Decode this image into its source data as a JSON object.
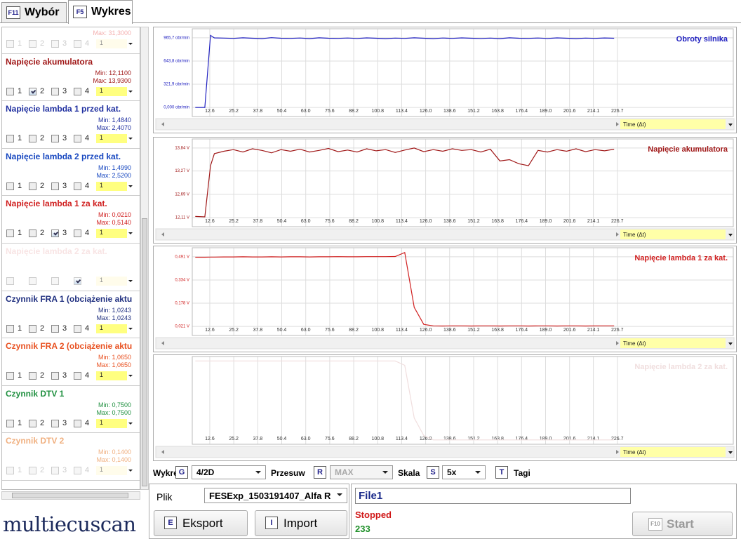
{
  "tabs": [
    {
      "key": "F11",
      "label": "Wybór"
    },
    {
      "key": "F5",
      "label": "Wykres"
    }
  ],
  "sidebar": {
    "checkbox_labels": [
      "1",
      "2",
      "3",
      "4"
    ],
    "dropdown": "1",
    "items": [
      {
        "color": "#f4b0b0",
        "max": "Max: 31,3000",
        "faded": true
      },
      {
        "name": "Napięcie akumulatora",
        "color": "#a01818",
        "min": "Min: 12,1100",
        "max": "Max: 13,9300",
        "checked": 2
      },
      {
        "name": "Napięcie lambda 1 przed kat.",
        "color": "#2030a0",
        "min": "Min: 1,4840",
        "max": "Max: 2,4070"
      },
      {
        "name": "Napięcie lambda 2 przed kat.",
        "color": "#1848c0",
        "min": "Min: 1,4990",
        "max": "Max: 2,5200"
      },
      {
        "name": "Napięcie lambda 1 za kat.",
        "color": "#d02020",
        "min": "Min: 0,0210",
        "max": "Max: 0,5140",
        "checked": 3
      },
      {
        "name": "Napięcie lambda 2 za kat.",
        "color": "#f8e4e4",
        "checked": 4,
        "faded": true,
        "checkbox_numbers": false
      },
      {
        "name": "Czynnik FRA 1 (obciążenie aktu",
        "color": "#203080",
        "min": "Min: 1,0243",
        "max": "Max: 1,0243"
      },
      {
        "name": "Czynnik FRA 2 (obciążenie aktu",
        "color": "#e85020",
        "min": "Min: 1,0650",
        "max": "Max: 1,0650"
      },
      {
        "name": "Czynnik DTV 1",
        "color": "#209040",
        "min": "Min: 0,7500",
        "max": "Max: 0,7500"
      },
      {
        "name": "Czynnik DTV 2",
        "color": "#f0b080",
        "min": "Min: 0,1400",
        "max": "Max: 0,1400",
        "faded": true
      }
    ]
  },
  "chart_data": [
    {
      "type": "line",
      "x_label": "Time (Δt)",
      "x": [
        5,
        10,
        13,
        15,
        20,
        25,
        30,
        35,
        40,
        45,
        50,
        55,
        60,
        65,
        70,
        75,
        80,
        85,
        90,
        95,
        100,
        105,
        110,
        115,
        120,
        125,
        130,
        135,
        140,
        145,
        150,
        155,
        160,
        165,
        170,
        175,
        180,
        185,
        190,
        195,
        200,
        205,
        210,
        215,
        220,
        225
      ],
      "series": [
        {
          "name": "Obroty silnika",
          "color": "#2020c0",
          "values": [
            0,
            0,
            1000,
            965,
            962,
            958,
            966,
            960,
            955,
            968,
            960,
            958,
            963,
            955,
            966,
            960,
            958,
            963,
            957,
            965,
            960,
            955,
            962,
            958,
            966,
            960,
            955,
            963,
            958,
            965,
            960,
            957,
            962,
            955,
            966,
            960,
            958,
            963,
            957,
            965,
            960,
            955,
            962,
            958,
            964,
            960
          ]
        }
      ],
      "xlim": [
        3.4,
        287.6
      ],
      "ylim": [
        -125.5,
        1091.2
      ],
      "xticks": [
        12.6,
        25.2,
        37.8,
        50.4,
        {
          "value": 63,
          "label": "63.0"
        },
        75.6,
        88.2,
        100.8,
        113.4,
        {
          "value": 126,
          "label": "126.0"
        },
        138.6,
        151.2,
        163.8,
        176.4,
        {
          "value": 189,
          "label": "189.0"
        },
        201.6,
        214.1,
        226.7
      ],
      "yticks": [
        {
          "value": 0,
          "label": "0,000 obr/min"
        },
        {
          "value": 321.9,
          "label": "321,9 obr/min"
        },
        {
          "value": 643.8,
          "label": "643,8 obr/min"
        },
        {
          "value": 965.7,
          "label": "965,7 obr/min"
        }
      ],
      "grid": true
    },
    {
      "type": "line",
      "x_label": "Time (Δt)",
      "x": [
        5,
        10,
        13,
        15,
        20,
        25,
        30,
        35,
        40,
        45,
        50,
        55,
        60,
        65,
        70,
        75,
        80,
        85,
        90,
        95,
        100,
        105,
        110,
        115,
        120,
        125,
        130,
        135,
        140,
        145,
        150,
        155,
        160,
        165,
        170,
        175,
        180,
        185,
        190,
        195,
        200,
        205,
        210,
        215,
        220,
        225
      ],
      "series": [
        {
          "name": "Napięcie akumulatora",
          "color": "#a01818",
          "values": [
            12.14,
            12.13,
            13.4,
            13.7,
            13.76,
            13.8,
            13.74,
            13.82,
            13.78,
            13.72,
            13.8,
            13.76,
            13.81,
            13.74,
            13.78,
            13.83,
            13.75,
            13.79,
            13.74,
            13.82,
            13.77,
            13.8,
            13.73,
            13.79,
            13.84,
            13.75,
            13.8,
            13.76,
            13.82,
            13.78,
            13.8,
            13.74,
            13.81,
            13.52,
            13.55,
            13.45,
            13.4,
            13.78,
            13.74,
            13.8,
            13.76,
            13.82,
            13.75,
            13.8,
            13.77,
            13.81
          ]
        }
      ],
      "xlim": [
        3.4,
        287.6
      ],
      "ylim": [
        11.885,
        14.065
      ],
      "xticks": [
        12.6,
        25.2,
        37.8,
        50.4,
        {
          "value": 63,
          "label": "63.0"
        },
        75.6,
        88.2,
        100.8,
        113.4,
        {
          "value": 126,
          "label": "126.0"
        },
        138.6,
        151.2,
        163.8,
        176.4,
        {
          "value": 189,
          "label": "189.0"
        },
        201.6,
        214.1,
        226.7
      ],
      "yticks": [
        {
          "value": 12.11,
          "label": "12,11 V"
        },
        {
          "value": 12.69,
          "label": "12,69 V"
        },
        {
          "value": 13.27,
          "label": "13,27 V"
        },
        {
          "value": 13.84,
          "label": "13,84 V"
        }
      ],
      "grid": true
    },
    {
      "type": "line",
      "x_label": "Time (Δt)",
      "x": [
        5,
        10,
        13,
        15,
        20,
        25,
        30,
        35,
        40,
        45,
        50,
        55,
        60,
        65,
        70,
        75,
        80,
        85,
        90,
        95,
        100,
        105,
        110,
        115,
        120,
        125,
        130,
        135,
        140,
        145,
        150,
        155,
        160,
        165,
        170,
        175,
        180,
        185,
        190,
        195,
        200,
        205,
        210,
        215,
        220,
        225
      ],
      "series": [
        {
          "name": "Napięcie lambda 1 za kat.",
          "color": "#d02020",
          "values": [
            0.488,
            0.488,
            0.489,
            0.489,
            0.49,
            0.49,
            0.491,
            0.49,
            0.49,
            0.491,
            0.49,
            0.491,
            0.491,
            0.49,
            0.491,
            0.491,
            0.492,
            0.491,
            0.491,
            0.492,
            0.492,
            0.492,
            0.493,
            0.52,
            0.15,
            0.035,
            0.025,
            0.024,
            0.025,
            0.025,
            0.024,
            0.025,
            0.025,
            0.024,
            0.025,
            0.025,
            0.024,
            0.025,
            0.025,
            0.024,
            0.025,
            0.025,
            0.024,
            0.025,
            0.025,
            0.025
          ]
        }
      ],
      "xlim": [
        3.4,
        287.6
      ],
      "ylim": [
        -0.04,
        0.552
      ],
      "xticks": [
        12.6,
        25.2,
        37.8,
        50.4,
        {
          "value": 63,
          "label": "63.0"
        },
        75.6,
        88.2,
        100.8,
        113.4,
        {
          "value": 126,
          "label": "126.0"
        },
        138.6,
        151.2,
        163.8,
        176.4,
        {
          "value": 189,
          "label": "189.0"
        },
        201.6,
        214.1,
        226.7
      ],
      "yticks": [
        {
          "value": 0.021,
          "label": "0,021 V"
        },
        {
          "value": 0.178,
          "label": "0,178 V"
        },
        {
          "value": 0.334,
          "label": "0,334 V"
        },
        {
          "value": 0.491,
          "label": "0,491 V"
        }
      ],
      "grid": true
    },
    {
      "type": "line",
      "x_label": "Time (Δt)",
      "x": [
        5,
        10,
        13,
        15,
        20,
        25,
        30,
        35,
        40,
        45,
        50,
        55,
        60,
        65,
        70,
        75,
        80,
        85,
        90,
        95,
        100,
        105,
        110,
        115,
        120,
        125,
        130,
        135,
        140,
        145,
        150,
        155,
        160,
        165,
        170,
        175,
        180,
        185,
        190,
        195,
        200,
        205,
        210,
        215,
        220,
        225
      ],
      "series": [
        {
          "name": "Napięcie lambda 2 za kat.",
          "color": "#f0dede",
          "values": [
            0.95,
            0.95,
            0.95,
            0.95,
            0.95,
            0.95,
            0.95,
            0.95,
            0.95,
            0.95,
            0.95,
            0.95,
            0.95,
            0.95,
            0.95,
            0.95,
            0.95,
            0.95,
            0.95,
            0.95,
            0.95,
            0.95,
            0.95,
            0.9,
            0.3,
            0.1,
            0.05,
            0.05,
            0.05,
            0.05,
            0.05,
            0.05,
            0.05,
            0.05,
            0.05,
            0.05,
            0.05,
            0.05,
            0.05,
            0.05,
            0.05,
            0.05,
            0.05,
            0.05,
            0.05,
            0.05
          ]
        }
      ],
      "xlim": [
        3.4,
        287.6
      ],
      "ylim": [
        0,
        1
      ],
      "xticks": [
        12.6,
        25.2,
        37.8,
        50.4,
        {
          "value": 63,
          "label": "63.0"
        },
        75.6,
        88.2,
        100.8,
        113.4,
        {
          "value": 126,
          "label": "126.0"
        },
        138.6,
        151.2,
        163.8,
        176.4,
        {
          "value": 189,
          "label": "189.0"
        },
        201.6,
        214.1,
        226.7
      ],
      "yticks": [],
      "grid": true
    }
  ],
  "controls": {
    "charts_label": "Wykresy",
    "charts_key": "G",
    "charts_value": "4/2D",
    "shift_label": "Przesuw",
    "shift_key": "R",
    "shift_value": "MAX",
    "scale_label": "Skala",
    "scale_key": "S",
    "scale_value": "5x",
    "tags_key": "T",
    "tags_label": "Tagi"
  },
  "file": {
    "label": "Plik",
    "value": "FESExp_1503191407_Alfa R",
    "name": "File1",
    "export_key": "E",
    "export": "Eksport",
    "import_key": "I",
    "import": "Import",
    "status": "Stopped",
    "count": 233,
    "start_key": "F10",
    "start": "Start"
  },
  "logo": "multiecuscan"
}
